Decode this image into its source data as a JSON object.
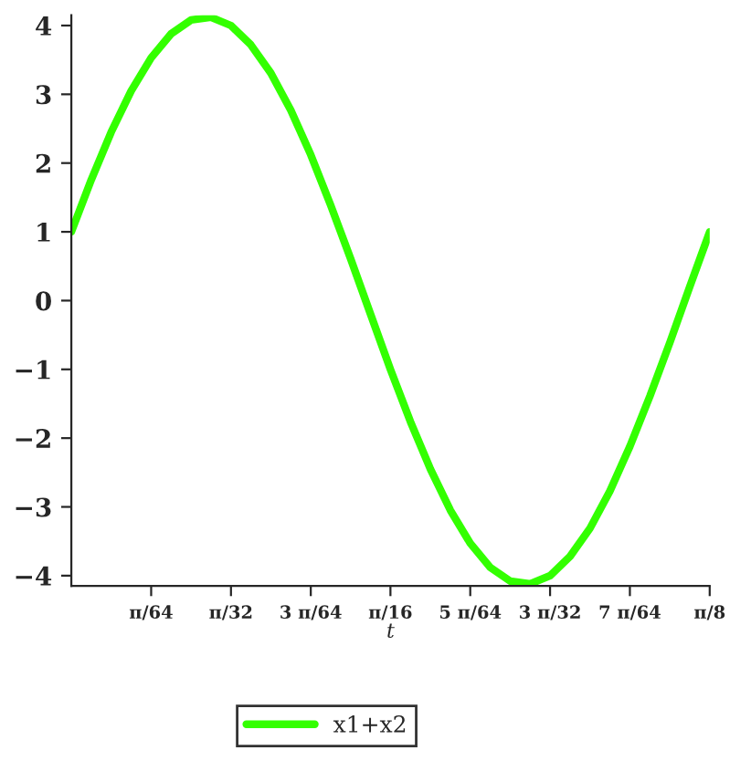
{
  "chart_data": {
    "type": "line",
    "xlabel": "t",
    "legend": "bottom",
    "grid": false,
    "x": [
      0,
      0.0123,
      0.0245,
      0.0368,
      0.0491,
      0.0614,
      0.0736,
      0.0859,
      0.0982,
      0.1104,
      0.1227,
      0.135,
      0.1473,
      0.1595,
      0.1718,
      0.1841,
      0.1963,
      0.2086,
      0.2209,
      0.2332,
      0.2454,
      0.2577,
      0.27,
      0.2823,
      0.2945,
      0.3068,
      0.3191,
      0.3313,
      0.3436,
      0.3559,
      0.3682,
      0.3804,
      0.3927
    ],
    "series": [
      {
        "name": "x1+x2",
        "color": "#33ff00",
        "values": [
          1.0,
          1.76,
          2.45,
          3.05,
          3.53,
          3.88,
          4.08,
          4.12,
          4.0,
          3.72,
          3.31,
          2.77,
          2.12,
          1.39,
          0.61,
          -0.2,
          -1.0,
          -1.76,
          -2.45,
          -3.05,
          -3.53,
          -3.88,
          -4.08,
          -4.12,
          -4.0,
          -3.72,
          -3.31,
          -2.77,
          -2.12,
          -1.39,
          -0.61,
          0.2,
          1.0
        ]
      }
    ],
    "xlim": [
      0,
      0.3927
    ],
    "ylim": [
      -4.15,
      4.15
    ],
    "yticks": [
      {
        "value": -4,
        "label": "−4"
      },
      {
        "value": -3,
        "label": "−3"
      },
      {
        "value": -2,
        "label": "−2"
      },
      {
        "value": -1,
        "label": "−1"
      },
      0,
      1,
      2,
      3,
      4
    ],
    "xticks": [
      {
        "value": 0.0491,
        "label": "π/64"
      },
      {
        "value": 0.0982,
        "label": "π/32"
      },
      {
        "value": 0.1473,
        "label": "3 π/64"
      },
      {
        "value": 0.1963,
        "label": "π/16"
      },
      {
        "value": 0.2454,
        "label": "5 π/64"
      },
      {
        "value": 0.2945,
        "label": "3 π/32"
      },
      {
        "value": 0.3436,
        "label": "7 π/64"
      },
      {
        "value": 0.3927,
        "label": "π/8"
      }
    ]
  }
}
